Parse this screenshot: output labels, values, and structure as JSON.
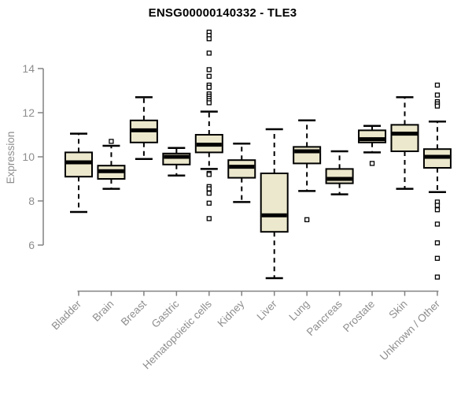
{
  "title": "ENSG00000140332 - TLE3",
  "chart_data": {
    "type": "boxplot",
    "title": "ENSG00000140332 - TLE3",
    "ylabel": "Expression",
    "yticks": [
      6,
      8,
      10,
      12,
      14
    ],
    "ylim": [
      4.3,
      15.9
    ],
    "grid": false,
    "legend": "none",
    "categories": [
      "Bladder",
      "Brain",
      "Breast",
      "Gastric",
      "Hematopoietic cells",
      "Kidney",
      "Liver",
      "Lung",
      "Pancreas",
      "Prostate",
      "Skin",
      "Unknown / Other"
    ],
    "series": [
      {
        "name": "Bladder",
        "whisker_low": 7.5,
        "q1": 9.1,
        "median": 9.75,
        "q3": 10.2,
        "whisker_high": 11.05,
        "outliers": []
      },
      {
        "name": "Brain",
        "whisker_low": 8.55,
        "q1": 9.0,
        "median": 9.35,
        "q3": 9.6,
        "whisker_high": 10.5,
        "outliers": [
          10.7
        ]
      },
      {
        "name": "Breast",
        "whisker_low": 9.9,
        "q1": 10.65,
        "median": 11.2,
        "q3": 11.65,
        "whisker_high": 12.7,
        "outliers": []
      },
      {
        "name": "Gastric",
        "whisker_low": 9.15,
        "q1": 9.65,
        "median": 10.0,
        "q3": 10.15,
        "whisker_high": 10.4,
        "outliers": []
      },
      {
        "name": "Hematopoietic cells",
        "whisker_low": 9.45,
        "q1": 10.2,
        "median": 10.55,
        "q3": 11.0,
        "whisker_high": 12.05,
        "outliers": [
          15.65,
          15.5,
          15.35,
          14.7,
          13.95,
          13.65,
          13.25,
          13.15,
          12.85,
          12.75,
          12.65,
          12.55,
          12.45,
          9.25,
          9.2,
          8.65,
          8.55,
          8.35,
          7.9,
          7.2
        ]
      },
      {
        "name": "Kidney",
        "whisker_low": 7.95,
        "q1": 9.05,
        "median": 9.55,
        "q3": 9.85,
        "whisker_high": 10.6,
        "outliers": []
      },
      {
        "name": "Liver",
        "whisker_low": 4.5,
        "q1": 6.6,
        "median": 7.35,
        "q3": 9.25,
        "whisker_high": 11.25,
        "outliers": []
      },
      {
        "name": "Lung",
        "whisker_low": 8.45,
        "q1": 9.7,
        "median": 10.25,
        "q3": 10.45,
        "whisker_high": 11.65,
        "outliers": [
          7.15
        ]
      },
      {
        "name": "Pancreas",
        "whisker_low": 8.3,
        "q1": 8.8,
        "median": 9.0,
        "q3": 9.45,
        "whisker_high": 10.25,
        "outliers": []
      },
      {
        "name": "Prostate",
        "whisker_low": 10.2,
        "q1": 10.65,
        "median": 10.8,
        "q3": 11.2,
        "whisker_high": 11.4,
        "outliers": [
          9.7
        ]
      },
      {
        "name": "Skin",
        "whisker_low": 8.55,
        "q1": 10.25,
        "median": 11.05,
        "q3": 11.45,
        "whisker_high": 12.7,
        "outliers": []
      },
      {
        "name": "Unknown / Other",
        "whisker_low": 8.4,
        "q1": 9.5,
        "median": 10.0,
        "q3": 10.35,
        "whisker_high": 11.6,
        "outliers": [
          13.25,
          12.8,
          12.5,
          12.4,
          12.3,
          7.95,
          7.8,
          7.6,
          6.95,
          6.1,
          5.4,
          4.55
        ]
      }
    ]
  },
  "style": {
    "background": "#FFFFFF",
    "box_fill": "#ECE8CD",
    "box_stroke": "#000000",
    "median_color": "#000000",
    "whisker_color": "#000000",
    "outlier_fill": "#FFFFFF",
    "axis_color": "#828282",
    "label_color": "#8E8E8E",
    "title_color": "#000000"
  }
}
